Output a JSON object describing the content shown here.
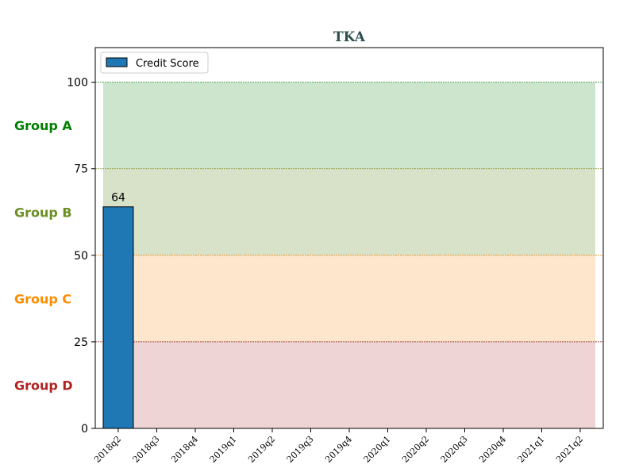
{
  "chart_data": {
    "type": "bar",
    "title": "TKA",
    "categories": [
      "2018q2",
      "2018q3",
      "2018q4",
      "2019q1",
      "2019q2",
      "2019q3",
      "2019q4",
      "2020q1",
      "2020q2",
      "2020q3",
      "2020q4",
      "2021q1",
      "2021q2"
    ],
    "series": [
      {
        "name": "Credit Score",
        "values": [
          64,
          null,
          null,
          null,
          null,
          null,
          null,
          null,
          null,
          null,
          null,
          null,
          null
        ],
        "color": "#1f77b4"
      }
    ],
    "data_labels": [
      "64"
    ],
    "ylim": [
      0,
      110
    ],
    "yticks": [
      0,
      25,
      50,
      75,
      100
    ],
    "ytick_labels": [
      "0",
      "25",
      "50",
      "75",
      "100"
    ],
    "bands": [
      {
        "label": "Group A",
        "from": 75,
        "to": 100,
        "fill": "#cde5cd",
        "label_color": "#008000",
        "line_color": "#2e8b2e"
      },
      {
        "label": "Group B",
        "from": 50,
        "to": 75,
        "fill": "#d8e2c8",
        "label_color": "#6b8e23",
        "line_color": "#7a8a20"
      },
      {
        "label": "Group C",
        "from": 25,
        "to": 50,
        "fill": "#fde6cb",
        "label_color": "#ff8c00",
        "line_color": "#e8902a"
      },
      {
        "label": "Group D",
        "from": 0,
        "to": 25,
        "fill": "#eed4d4",
        "label_color": "#b22222",
        "line_color": "#8b1a1a"
      }
    ],
    "legend": {
      "position": "top-left"
    },
    "title_color": "#2f4f4f"
  }
}
